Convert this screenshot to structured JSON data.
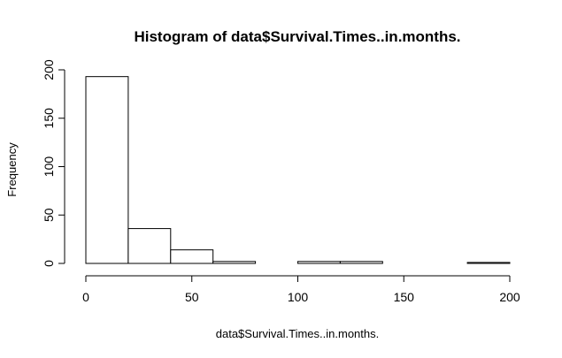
{
  "chart_data": {
    "type": "bar",
    "subtype": "histogram",
    "title": "Histogram of data$Survival.Times..in.months.",
    "xlabel": "data$Survival.Times..in.months.",
    "ylabel": "Frequency",
    "bin_edges": [
      0,
      20,
      40,
      60,
      80,
      100,
      120,
      140,
      160,
      180,
      200
    ],
    "values": [
      193,
      36,
      14,
      2,
      0,
      2,
      2,
      0,
      0,
      1
    ],
    "xlim": [
      0,
      200
    ],
    "ylim": [
      0,
      200
    ],
    "x_ticks": [
      0,
      50,
      100,
      150,
      200
    ],
    "x_tick_labels": [
      "0",
      "50",
      "100",
      "150",
      "200"
    ],
    "y_ticks": [
      0,
      50,
      100,
      150,
      200
    ],
    "y_tick_labels": [
      "0",
      "50",
      "100",
      "150",
      "200"
    ],
    "bar_fill": "#ffffff",
    "bar_stroke": "#000000",
    "grid": false
  }
}
